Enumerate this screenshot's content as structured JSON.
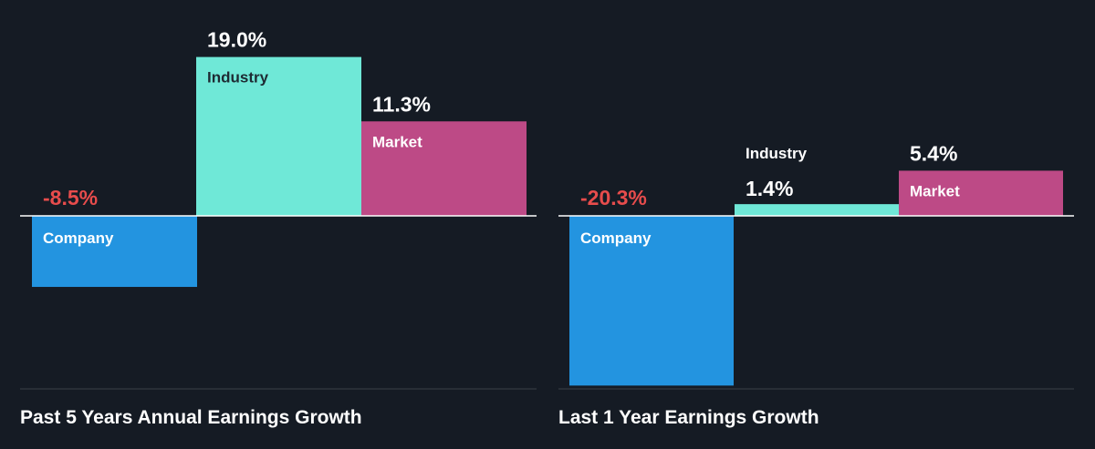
{
  "colors": {
    "background": "#151b24",
    "company": "#2394e0",
    "industry": "#6fe8d7",
    "market": "#bd4a86",
    "negative_text": "#e74c4c",
    "text": "#ffffff",
    "label_dark": "#1e2b33",
    "axis": "#ffffff",
    "baseline": "#3b4148"
  },
  "chart_data": [
    {
      "type": "bar",
      "title": "Past 5 Years Annual Earnings Growth",
      "categories": [
        "Company",
        "Industry",
        "Market"
      ],
      "values": [
        -8.5,
        19.0,
        11.3
      ],
      "value_labels": [
        "-8.5%",
        "19.0%",
        "11.3%"
      ],
      "colors": [
        "#2394e0",
        "#6fe8d7",
        "#bd4a86"
      ],
      "ylim": [
        -20.3,
        19.0
      ],
      "grid": false
    },
    {
      "type": "bar",
      "title": "Last 1 Year Earnings Growth",
      "categories": [
        "Company",
        "Industry",
        "Market"
      ],
      "values": [
        -20.3,
        1.4,
        5.4
      ],
      "value_labels": [
        "-20.3%",
        "1.4%",
        "5.4%"
      ],
      "colors": [
        "#2394e0",
        "#6fe8d7",
        "#bd4a86"
      ],
      "ylim": [
        -20.3,
        19.0
      ],
      "grid": false
    }
  ]
}
